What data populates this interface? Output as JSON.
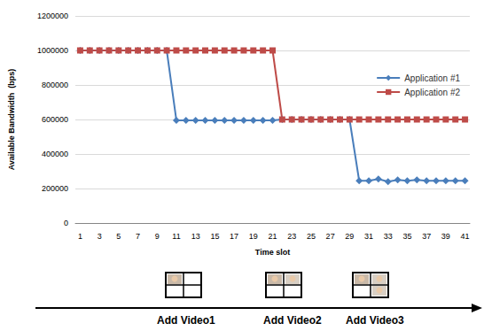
{
  "chart_data": {
    "type": "line",
    "x_label": "Time slot",
    "y_label": "Available Bandwidth  (bps)",
    "categories": [
      1,
      null,
      3,
      null,
      5,
      null,
      7,
      null,
      9,
      null,
      11,
      null,
      13,
      null,
      15,
      null,
      17,
      null,
      19,
      null,
      21,
      null,
      23,
      null,
      25,
      null,
      27,
      null,
      29,
      null,
      31,
      null,
      33,
      null,
      35,
      null,
      37,
      null,
      39,
      null,
      41
    ],
    "series": [
      {
        "name": "Application #1",
        "color": "#4a7ebb",
        "marker": "diamond",
        "values": [
          1000000,
          1000000,
          1000000,
          1000000,
          1000000,
          1000000,
          1000000,
          1000000,
          1000000,
          1000000,
          595000,
          595000,
          595000,
          595000,
          595000,
          595000,
          595000,
          595000,
          595000,
          595000,
          595000,
          600000,
          600000,
          600000,
          600000,
          600000,
          600000,
          600000,
          600000,
          245000,
          245000,
          255000,
          240000,
          250000,
          245000,
          250000,
          245000,
          245000,
          245000,
          245000,
          245000
        ]
      },
      {
        "name": "Application #2",
        "color": "#be4b48",
        "marker": "square",
        "values": [
          1000000,
          1000000,
          1000000,
          1000000,
          1000000,
          1000000,
          1000000,
          1000000,
          1000000,
          1000000,
          1000000,
          1000000,
          1000000,
          1000000,
          1000000,
          1000000,
          1000000,
          1000000,
          1000000,
          1000000,
          1000000,
          600000,
          600000,
          600000,
          600000,
          600000,
          600000,
          600000,
          600000,
          600000,
          600000,
          600000,
          600000,
          600000,
          600000,
          600000,
          600000,
          600000,
          600000,
          600000,
          600000
        ]
      }
    ],
    "ylim": [
      0,
      1200000
    ],
    "yticks": [
      0,
      200000,
      400000,
      600000,
      800000,
      1000000,
      1200000
    ],
    "grid": true,
    "legend": "right",
    "annotations": [
      "Add Video1",
      "Add Video2",
      "Add Video3"
    ]
  }
}
